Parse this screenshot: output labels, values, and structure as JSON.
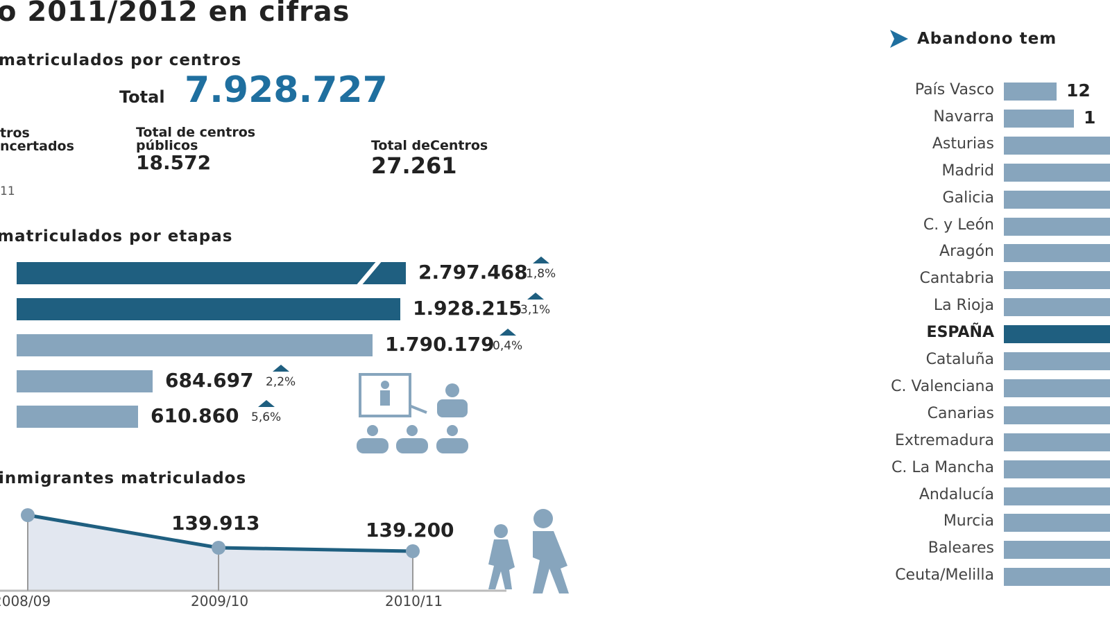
{
  "title": "o 2011/2012 en cifras",
  "centros": {
    "heading": "matriculados por centros",
    "total_label": "Total",
    "total_value": "7.928.727",
    "concertados_label_1": "tros",
    "concertados_label_2": "ncertados",
    "publicos_label_1": "Total de centros",
    "publicos_label_2": "públicos",
    "publicos_value": "18.572",
    "total_centros_label": "Total deCentros",
    "total_centros_value": "27.261",
    "source_fragment": "11"
  },
  "colors": {
    "dark": "#1f5f80",
    "light": "#87a5bd",
    "accent": "#1f6f9f",
    "area": "#e2e7f0"
  },
  "chart_data": [
    {
      "type": "bar",
      "title": "matriculados por etapas",
      "values": [
        2797468,
        1928215,
        1790179,
        684697,
        610860
      ],
      "labels": [
        "2.797.468",
        "1.928.215",
        "1.790.179",
        "684.697",
        "610.860"
      ],
      "changes": [
        "1,8%",
        "3,1%",
        "0,4%",
        "2,2%",
        "5,6%"
      ]
    },
    {
      "type": "line",
      "title": "inmigrantes matriculados",
      "x": [
        "2008/09",
        "2009/10",
        "2010/11"
      ],
      "labels": [
        "",
        "139.913",
        "139.200"
      ]
    },
    {
      "type": "bar",
      "title": "Abandono tem",
      "categories": [
        "País Vasco",
        "Navarra",
        "Asturias",
        "Madrid",
        "Galicia",
        "C. y León",
        "Aragón",
        "Cantabria",
        "La Rioja",
        "ESPAÑA",
        "Cataluña",
        "C. Valenciana",
        "Canarias",
        "Extremadura",
        "C. La Mancha",
        "Andalucía",
        "Murcia",
        "Baleares",
        "Ceuta/Melilla"
      ],
      "value_labels_visible": [
        "12",
        "1"
      ]
    }
  ]
}
